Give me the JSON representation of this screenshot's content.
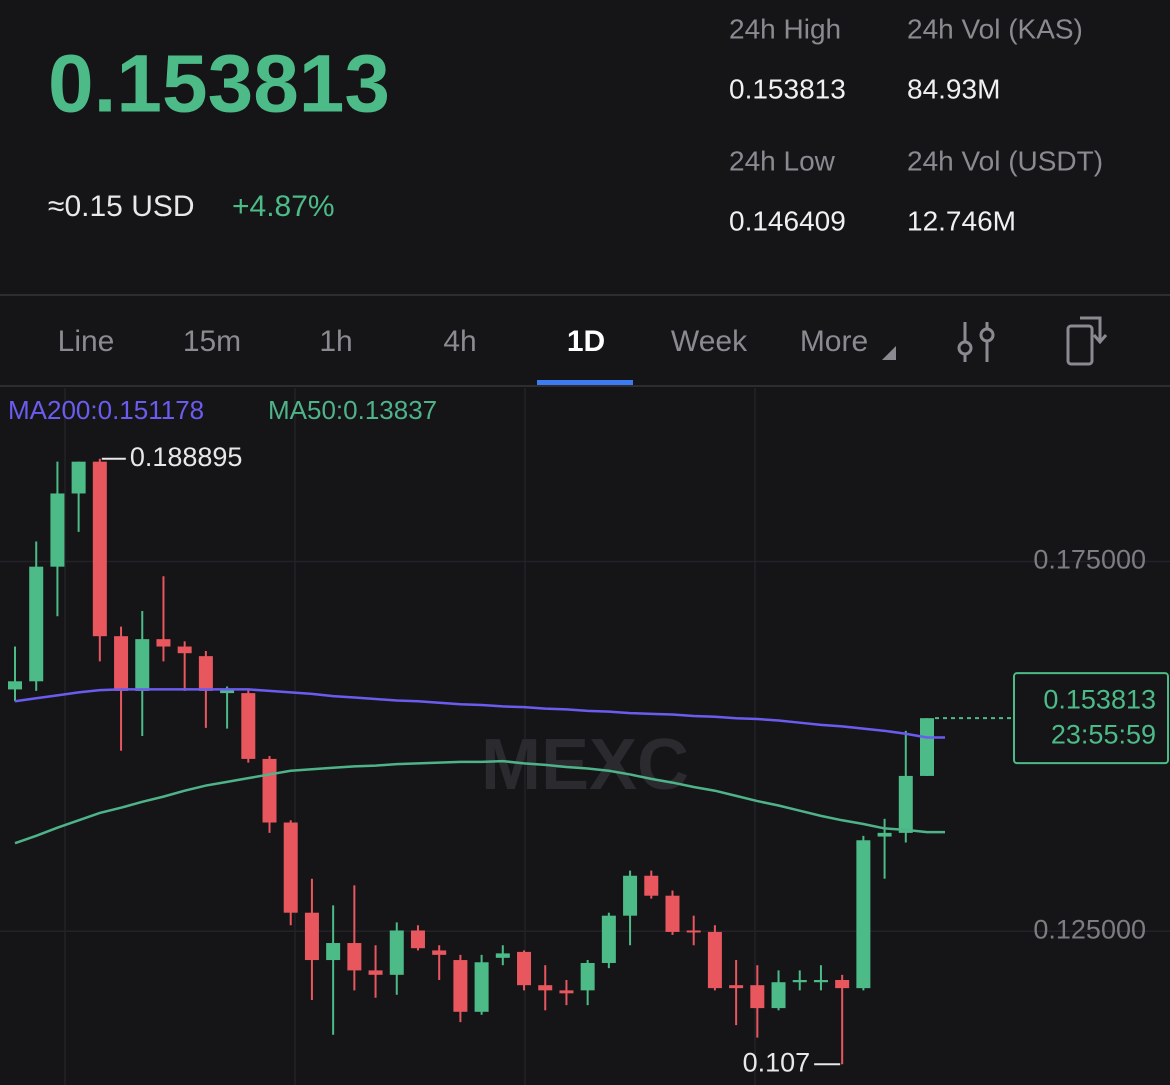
{
  "header": {
    "price": "0.153813",
    "usd_approx": "≈0.15 USD",
    "change": "+4.87%"
  },
  "stats": [
    {
      "label": "24h High",
      "value": "0.153813"
    },
    {
      "label": "24h Vol (KAS)",
      "value": "84.93M"
    },
    {
      "label": "24h Low",
      "value": "0.146409"
    },
    {
      "label": "24h Vol  (USDT)",
      "value": "12.746M"
    }
  ],
  "tabs": [
    "Line",
    "15m",
    "1h",
    "4h",
    "1D",
    "Week",
    "More"
  ],
  "active_tab": "1D",
  "chart_data": {
    "type": "candlestick",
    "watermark": "MEXC",
    "up_color": "#4dbb87",
    "down_color": "#e8565e",
    "ylim": [
      0.1042,
      0.1986
    ],
    "yticks": [
      {
        "value": 0.175,
        "label": "0.175000"
      },
      {
        "value": 0.125,
        "label": "0.125000"
      }
    ],
    "open": [
      0.1577,
      0.1588,
      0.1743,
      0.1842,
      0.1885,
      0.1649,
      0.1575,
      0.1645,
      0.1635,
      0.1622,
      0.1572,
      0.1572,
      0.1483,
      0.1397,
      0.1275,
      0.1211,
      0.1234,
      0.1197,
      0.1191,
      0.1251,
      0.1224,
      0.1211,
      0.1141,
      0.1214,
      0.1222,
      0.1177,
      0.117,
      0.117,
      0.1207,
      0.1271,
      0.1325,
      0.1298,
      0.1251,
      0.1249,
      0.1177,
      0.1177,
      0.1146,
      0.1181,
      0.1181,
      0.1184,
      0.1173,
      0.1378,
      0.1383,
      0.146
    ],
    "high": [
      0.1635,
      0.1777,
      0.1885,
      0.1885,
      0.188895,
      0.1662,
      0.1683,
      0.173,
      0.1642,
      0.1629,
      0.1581,
      0.1577,
      0.1487,
      0.14,
      0.1321,
      0.1285,
      0.1312,
      0.1231,
      0.1262,
      0.1258,
      0.1231,
      0.1218,
      0.1218,
      0.1231,
      0.1224,
      0.1204,
      0.1184,
      0.1211,
      0.1275,
      0.1332,
      0.1332,
      0.1305,
      0.1271,
      0.1258,
      0.1211,
      0.1204,
      0.1197,
      0.1197,
      0.1204,
      0.1191,
      0.1379,
      0.1402,
      0.1521,
      0.153813
    ],
    "low": [
      0.1561,
      0.1575,
      0.1676,
      0.179,
      0.1615,
      0.1494,
      0.1514,
      0.1615,
      0.1575,
      0.1525,
      0.1524,
      0.1478,
      0.1383,
      0.1258,
      0.1157,
      0.111,
      0.117,
      0.116,
      0.1164,
      0.1224,
      0.1184,
      0.1127,
      0.1137,
      0.1204,
      0.117,
      0.1143,
      0.115,
      0.115,
      0.12,
      0.1231,
      0.1294,
      0.1245,
      0.1231,
      0.117,
      0.1123,
      0.1106,
      0.1143,
      0.117,
      0.117,
      0.107,
      0.117,
      0.1321,
      0.137,
      0.146
    ],
    "close": [
      0.1588,
      0.1743,
      0.1842,
      0.1885,
      0.1649,
      0.1575,
      0.1645,
      0.1635,
      0.1626,
      0.1575,
      0.1577,
      0.1483,
      0.1397,
      0.1275,
      0.1211,
      0.1234,
      0.1197,
      0.1191,
      0.1251,
      0.1227,
      0.1218,
      0.1141,
      0.1208,
      0.122,
      0.1177,
      0.117,
      0.1166,
      0.1207,
      0.1271,
      0.1325,
      0.1298,
      0.1249,
      0.1249,
      0.1173,
      0.1173,
      0.1146,
      0.1181,
      0.1184,
      0.1184,
      0.1173,
      0.1373,
      0.1383,
      0.146,
      0.153813
    ],
    "high_label": "0.188895",
    "low_label": "0.107",
    "current_price": {
      "value": 0.153813,
      "label": "0.153813",
      "countdown": "23:55:59"
    },
    "series": [
      {
        "name": "MA200:0.151178",
        "color": "#6b5cf0",
        "values": [
          0.1561,
          0.1565,
          0.1569,
          0.1573,
          0.1576,
          0.1577,
          0.1577,
          0.1577,
          0.1577,
          0.1577,
          0.1577,
          0.1577,
          0.1575,
          0.1573,
          0.1571,
          0.1568,
          0.1566,
          0.1564,
          0.1562,
          0.1561,
          0.1559,
          0.1557,
          0.1556,
          0.1554,
          0.1553,
          0.1551,
          0.155,
          0.1548,
          0.1547,
          0.1545,
          0.1544,
          0.1543,
          0.1541,
          0.154,
          0.1538,
          0.1537,
          0.1535,
          0.1532,
          0.1529,
          0.1527,
          0.1524,
          0.1521,
          0.1517,
          0.1512
        ]
      },
      {
        "name": "MA50:0.13837",
        "color": "#4fb38a",
        "values": [
          0.1369,
          0.1379,
          0.139,
          0.14,
          0.141,
          0.1417,
          0.1425,
          0.1432,
          0.144,
          0.1447,
          0.1452,
          0.1457,
          0.1462,
          0.1467,
          0.1469,
          0.1471,
          0.1473,
          0.1474,
          0.1476,
          0.1477,
          0.1478,
          0.1479,
          0.1479,
          0.148,
          0.1477,
          0.1475,
          0.1472,
          0.147,
          0.1467,
          0.1462,
          0.1456,
          0.1451,
          0.1445,
          0.144,
          0.1433,
          0.1426,
          0.142,
          0.1413,
          0.1406,
          0.14,
          0.1395,
          0.1389,
          0.1387,
          0.1384
        ]
      }
    ]
  }
}
